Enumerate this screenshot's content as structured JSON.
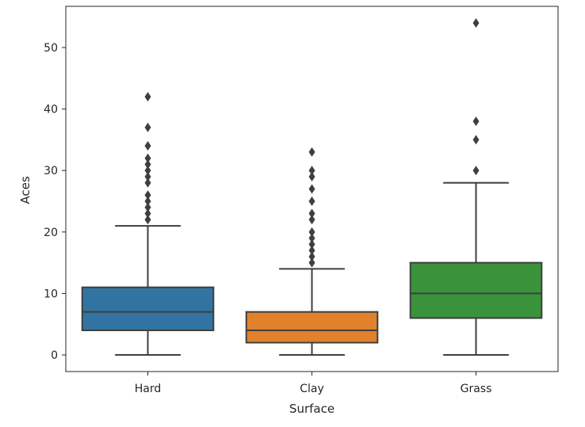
{
  "chart_data": {
    "type": "box",
    "xlabel": "Surface",
    "ylabel": "Aces",
    "ylim": [
      -2.7,
      56.7
    ],
    "yticks": [
      0,
      10,
      20,
      30,
      40,
      50
    ],
    "grid": false,
    "categories": [
      "Hard",
      "Clay",
      "Grass"
    ],
    "boxes": [
      {
        "name": "Hard",
        "color": "#3274a1",
        "whisker_low": 0,
        "q1": 4,
        "median": 7,
        "q3": 11,
        "whisker_high": 21,
        "outliers": [
          22,
          23,
          24,
          25,
          26,
          28,
          29,
          30,
          31,
          32,
          34,
          37,
          42
        ]
      },
      {
        "name": "Clay",
        "color": "#e1812c",
        "whisker_low": 0,
        "q1": 2,
        "median": 4,
        "q3": 7,
        "whisker_high": 14,
        "outliers": [
          15,
          16,
          17,
          18,
          19,
          20,
          22,
          23,
          25,
          27,
          29,
          30,
          33
        ]
      },
      {
        "name": "Grass",
        "color": "#3a923a",
        "whisker_low": 0,
        "q1": 6,
        "median": 10,
        "q3": 15,
        "whisker_high": 28,
        "outliers": [
          30,
          35,
          38,
          54
        ]
      }
    ]
  }
}
